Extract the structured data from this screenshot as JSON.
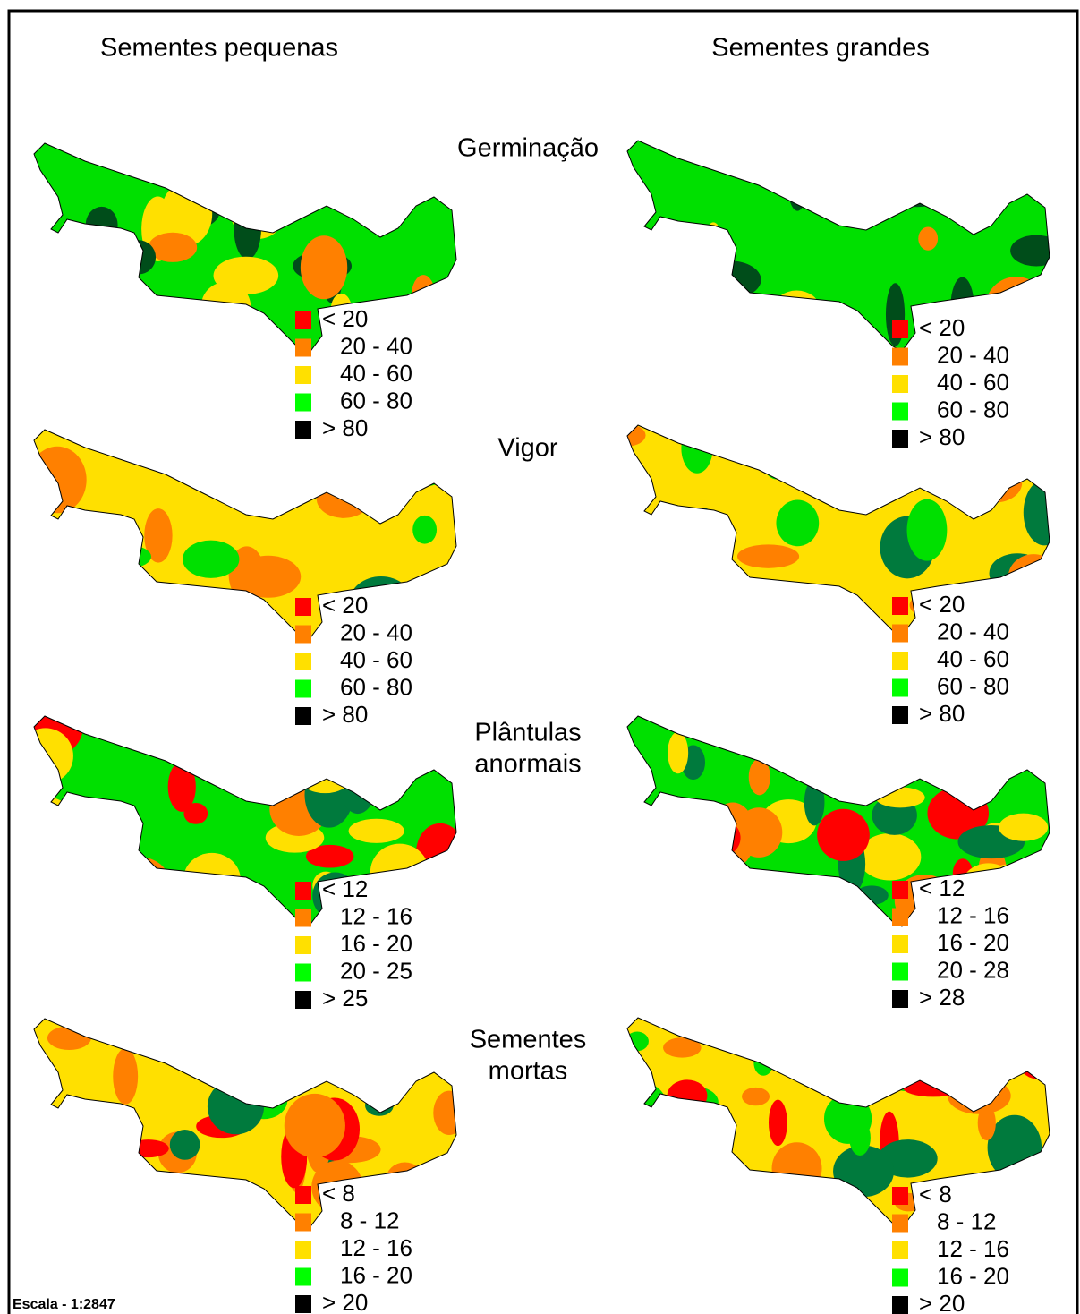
{
  "columns": [
    "Sementes pequenas",
    "Sementes grandes"
  ],
  "rows": [
    {
      "title_lines": [
        "Germinação"
      ],
      "legends": [
        [
          "< 20",
          "20 - 40",
          "40 - 60",
          "60 - 80",
          "> 80"
        ],
        [
          "< 20",
          "20 - 40",
          "40 - 60",
          "60 - 80",
          "> 80"
        ]
      ]
    },
    {
      "title_lines": [
        "Vigor"
      ],
      "legends": [
        [
          "< 20",
          "20 - 40",
          "40 - 60",
          "60 - 80",
          "> 80"
        ],
        [
          "< 20",
          "20 - 40",
          "40 - 60",
          "60 - 80",
          "> 80"
        ]
      ]
    },
    {
      "title_lines": [
        "Plântulas",
        "anormais"
      ],
      "legends": [
        [
          "< 12",
          "12 - 16",
          "16 - 20",
          "20 - 25",
          "> 25"
        ],
        [
          "< 12",
          "12 - 16",
          "16 - 20",
          "20 - 28",
          "> 28"
        ]
      ]
    },
    {
      "title_lines": [
        "Sementes",
        "mortas"
      ],
      "legends": [
        [
          "< 8",
          "8 - 12",
          "12 - 16",
          "16 - 20",
          "> 20"
        ],
        [
          "< 8",
          "8 - 12",
          "12 - 16",
          "16 - 20",
          "> 20"
        ]
      ]
    }
  ],
  "legend_colors": [
    "#ff0000",
    "#ff8000",
    "#ffe000",
    "#00ff00",
    "#000000"
  ],
  "scale": "Escala - 1:2847"
}
